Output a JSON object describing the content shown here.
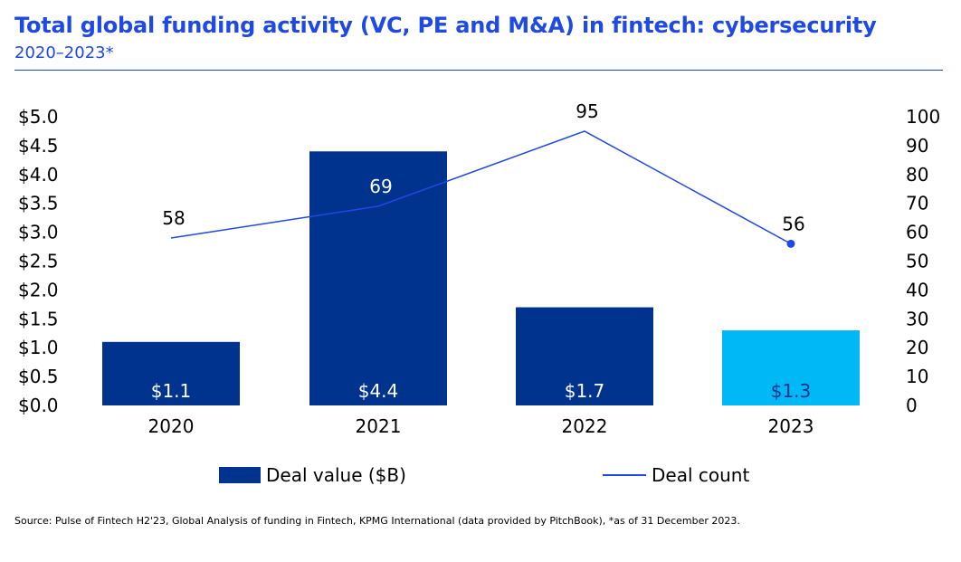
{
  "header": {
    "title": "Total global funding activity (VC, PE and M&A) in fintech: cybersecurity",
    "subtitle": "2020–2023*"
  },
  "chart_data": {
    "type": "bar",
    "title": "Total global funding activity (VC, PE and M&A) in fintech: cybersecurity",
    "subtitle": "2020–2023*",
    "categories": [
      "2020",
      "2021",
      "2022",
      "2023"
    ],
    "series": [
      {
        "name": "Deal value ($B)",
        "type": "bar",
        "axis": "left",
        "values": [
          1.1,
          4.4,
          1.7,
          1.3
        ],
        "labels": [
          "$1.1",
          "$4.4",
          "$1.7",
          "$1.3"
        ],
        "colors": [
          "#00338d",
          "#00338d",
          "#00338d",
          "#00b8f5"
        ],
        "label_colors": [
          "#ffffff",
          "#ffffff",
          "#ffffff",
          "#00338d"
        ]
      },
      {
        "name": "Deal count",
        "type": "line",
        "axis": "right",
        "values": [
          58,
          69,
          95,
          56
        ],
        "labels": [
          "58",
          "69",
          "95",
          "56"
        ],
        "color": "#1e49e2"
      }
    ],
    "y_left": {
      "min": 0,
      "max": 5,
      "ticks": [
        "$0.0",
        "$0.5",
        "$1.0",
        "$1.5",
        "$2.0",
        "$2.5",
        "$3.0",
        "$3.5",
        "$4.0",
        "$4.5",
        "$5.0"
      ],
      "tick_values": [
        0,
        0.5,
        1,
        1.5,
        2,
        2.5,
        3,
        3.5,
        4,
        4.5,
        5
      ]
    },
    "y_right": {
      "min": 0,
      "max": 100,
      "ticks": [
        "0",
        "10",
        "20",
        "30",
        "40",
        "50",
        "60",
        "70",
        "80",
        "90",
        "100"
      ],
      "tick_values": [
        0,
        10,
        20,
        30,
        40,
        50,
        60,
        70,
        80,
        90,
        100
      ]
    },
    "grid": false,
    "legend_position": "bottom"
  },
  "legend": {
    "bar_label": "Deal value ($B)",
    "line_label": "Deal count"
  },
  "footer": {
    "source": "Source: Pulse of Fintech H2'23, Global Analysis of funding in Fintech, KPMG International (data provided by PitchBook), *as of 31 December 2023."
  },
  "colors": {
    "accent": "#1e49e2",
    "bar": "#00338d",
    "bar_highlight": "#00b8f5"
  }
}
